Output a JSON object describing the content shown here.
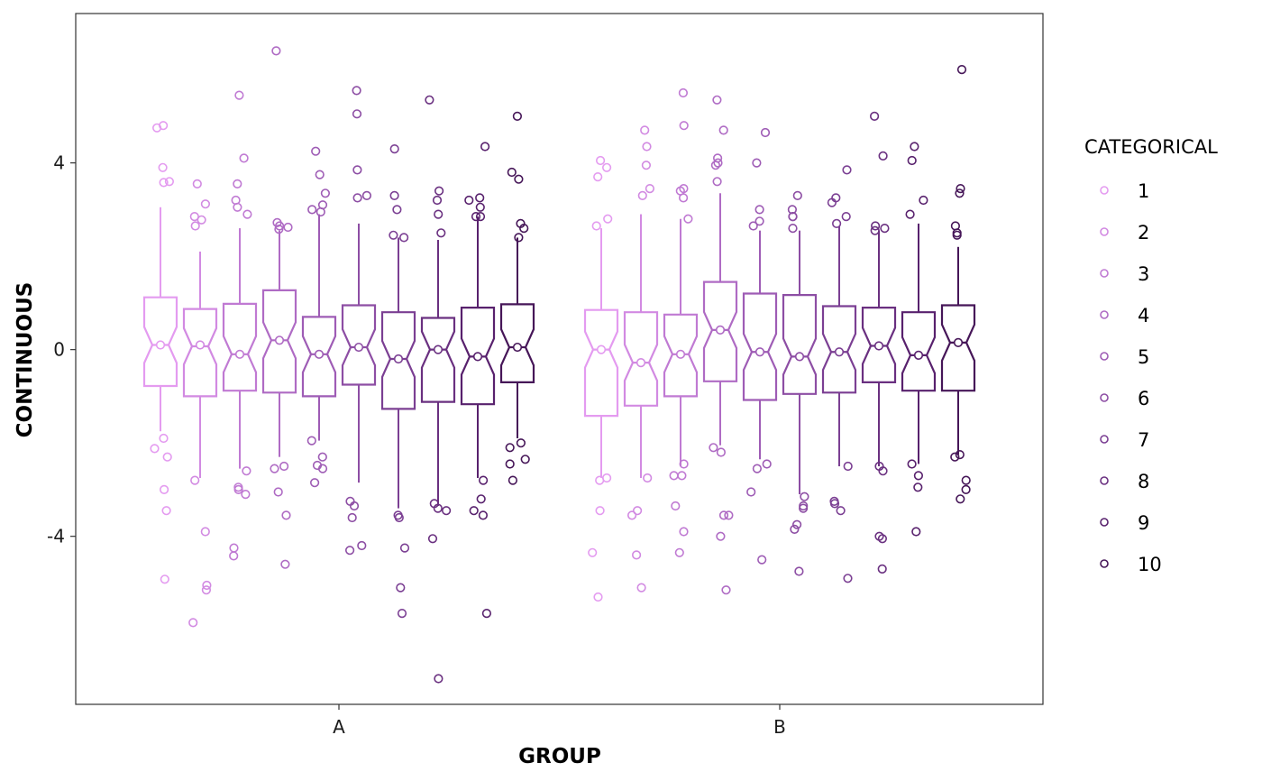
{
  "chart_data": {
    "type": "boxplot",
    "notched": true,
    "xlabel": "GROUP",
    "ylabel": "CONTINUOUS",
    "groups": [
      "A",
      "B"
    ],
    "ylim": [
      -7.6,
      7.2
    ],
    "yticks": [
      -4,
      0,
      4
    ],
    "ytick_labels": [
      "-4",
      "0",
      "4"
    ],
    "legend": {
      "title": "CATEGORICAL",
      "position": "right",
      "labels": [
        "1",
        "2",
        "3",
        "4",
        "5",
        "6",
        "7",
        "8",
        "9",
        "10"
      ]
    },
    "colors": [
      "#e49bf0",
      "#d28ae2",
      "#c07ad3",
      "#af6bc4",
      "#9e5cb5",
      "#8d4ea4",
      "#7b3f93",
      "#6a3080",
      "#58216d",
      "#461658"
    ],
    "boxes": [
      {
        "group": "A",
        "category": "1",
        "q1": -0.78,
        "median": 0.1,
        "q3": 1.12,
        "mean": 0.1,
        "whisker_low": -1.75,
        "whisker_high": 3.05,
        "outliers": [
          4.8,
          4.75,
          3.9,
          3.6,
          3.58,
          -1.9,
          -2.12,
          -2.3,
          -3.0,
          -3.45,
          -4.92
        ]
      },
      {
        "group": "A",
        "category": "2",
        "q1": -1.0,
        "median": 0.07,
        "q3": 0.87,
        "mean": 0.1,
        "whisker_low": -2.75,
        "whisker_high": 2.1,
        "outliers": [
          3.55,
          3.12,
          2.85,
          2.78,
          2.65,
          -2.8,
          -3.9,
          -5.05,
          -5.15,
          -5.85
        ]
      },
      {
        "group": "A",
        "category": "3",
        "q1": -0.88,
        "median": -0.1,
        "q3": 0.98,
        "mean": -0.1,
        "whisker_low": -2.55,
        "whisker_high": 2.6,
        "outliers": [
          5.45,
          4.1,
          3.55,
          3.2,
          3.05,
          2.9,
          -2.6,
          -2.95,
          -3.0,
          -3.1,
          -4.25,
          -4.42
        ]
      },
      {
        "group": "A",
        "category": "4",
        "q1": -0.92,
        "median": 0.2,
        "q3": 1.27,
        "mean": 0.2,
        "whisker_low": -2.3,
        "whisker_high": 2.55,
        "outliers": [
          6.4,
          2.72,
          2.65,
          2.62,
          2.58,
          -2.5,
          -2.55,
          -3.05,
          -3.55,
          -4.6
        ]
      },
      {
        "group": "A",
        "category": "5",
        "q1": -1.0,
        "median": -0.1,
        "q3": 0.7,
        "mean": -0.1,
        "whisker_low": -1.95,
        "whisker_high": 2.9,
        "outliers": [
          4.25,
          3.75,
          3.35,
          3.1,
          3.0,
          2.95,
          -1.95,
          -2.3,
          -2.48,
          -2.55,
          -2.85
        ]
      },
      {
        "group": "A",
        "category": "6",
        "q1": -0.75,
        "median": 0.05,
        "q3": 0.95,
        "mean": 0.05,
        "whisker_low": -2.85,
        "whisker_high": 2.7,
        "outliers": [
          5.55,
          5.05,
          3.85,
          3.3,
          3.25,
          -3.25,
          -3.35,
          -3.6,
          -4.2,
          -4.3
        ]
      },
      {
        "group": "A",
        "category": "7",
        "q1": -1.27,
        "median": -0.2,
        "q3": 0.8,
        "mean": -0.2,
        "whisker_low": -3.4,
        "whisker_high": 2.4,
        "outliers": [
          4.3,
          3.3,
          3.0,
          2.45,
          2.4,
          -3.55,
          -3.6,
          -4.25,
          -5.1,
          -5.65
        ]
      },
      {
        "group": "A",
        "category": "8",
        "q1": -1.12,
        "median": 0.0,
        "q3": 0.68,
        "mean": 0.0,
        "whisker_low": -3.35,
        "whisker_high": 2.35,
        "outliers": [
          5.35,
          3.4,
          3.2,
          2.9,
          2.5,
          -3.3,
          -3.4,
          -3.45,
          -4.05,
          -7.05
        ]
      },
      {
        "group": "A",
        "category": "9",
        "q1": -1.17,
        "median": -0.15,
        "q3": 0.9,
        "mean": -0.15,
        "whisker_low": -2.75,
        "whisker_high": 2.85,
        "outliers": [
          4.35,
          3.25,
          3.2,
          3.05,
          2.85,
          2.85,
          -2.8,
          -3.2,
          -3.45,
          -3.55,
          -5.65
        ]
      },
      {
        "group": "A",
        "category": "10",
        "q1": -0.7,
        "median": 0.05,
        "q3": 0.97,
        "mean": 0.05,
        "whisker_low": -1.9,
        "whisker_high": 2.4,
        "outliers": [
          5.0,
          3.8,
          3.65,
          2.7,
          2.6,
          2.4,
          -2.0,
          -2.1,
          -2.35,
          -2.45,
          -2.8
        ]
      },
      {
        "group": "B",
        "category": "1",
        "q1": -1.42,
        "median": 0.0,
        "q3": 0.85,
        "mean": 0.0,
        "whisker_low": -2.75,
        "whisker_high": 2.6,
        "outliers": [
          4.05,
          3.9,
          3.7,
          2.8,
          2.65,
          -2.75,
          -2.8,
          -3.45,
          -4.35,
          -5.3
        ]
      },
      {
        "group": "B",
        "category": "2",
        "q1": -1.2,
        "median": -0.28,
        "q3": 0.8,
        "mean": -0.28,
        "whisker_low": -2.75,
        "whisker_high": 2.9,
        "outliers": [
          4.7,
          4.35,
          3.95,
          3.45,
          3.3,
          -2.75,
          -3.45,
          -3.55,
          -4.4,
          -5.1
        ]
      },
      {
        "group": "B",
        "category": "3",
        "q1": -1.0,
        "median": -0.1,
        "q3": 0.75,
        "mean": -0.1,
        "whisker_low": -2.5,
        "whisker_high": 2.8,
        "outliers": [
          5.5,
          4.8,
          3.45,
          3.4,
          3.25,
          2.8,
          -2.45,
          -2.7,
          -2.7,
          -3.35,
          -3.9,
          -4.35
        ]
      },
      {
        "group": "B",
        "category": "4",
        "q1": -0.68,
        "median": 0.42,
        "q3": 1.45,
        "mean": 0.42,
        "whisker_low": -2.05,
        "whisker_high": 3.35,
        "outliers": [
          5.35,
          4.7,
          4.1,
          4.0,
          3.95,
          3.6,
          -2.1,
          -2.2,
          -3.55,
          -3.55,
          -4.0,
          -5.15
        ]
      },
      {
        "group": "B",
        "category": "5",
        "q1": -1.08,
        "median": -0.05,
        "q3": 1.2,
        "mean": -0.05,
        "whisker_low": -2.35,
        "whisker_high": 2.55,
        "outliers": [
          4.65,
          4.0,
          3.0,
          2.75,
          2.65,
          -2.45,
          -2.55,
          -3.05,
          -4.5
        ]
      },
      {
        "group": "B",
        "category": "6",
        "q1": -0.95,
        "median": -0.15,
        "q3": 1.17,
        "mean": -0.15,
        "whisker_low": -3.1,
        "whisker_high": 2.55,
        "outliers": [
          3.3,
          3.0,
          2.85,
          2.85,
          2.6,
          -3.15,
          -3.35,
          -3.4,
          -3.75,
          -3.85,
          -4.75
        ]
      },
      {
        "group": "B",
        "category": "7",
        "q1": -0.92,
        "median": -0.05,
        "q3": 0.93,
        "mean": -0.05,
        "whisker_low": -2.5,
        "whisker_high": 2.65,
        "outliers": [
          3.85,
          3.25,
          3.15,
          2.85,
          2.7,
          -2.5,
          -3.25,
          -3.3,
          -3.45,
          -4.9
        ]
      },
      {
        "group": "B",
        "category": "8",
        "q1": -0.7,
        "median": 0.08,
        "q3": 0.9,
        "mean": 0.08,
        "whisker_low": -2.5,
        "whisker_high": 2.55,
        "outliers": [
          5.0,
          4.15,
          2.65,
          2.6,
          2.55,
          -2.5,
          -2.6,
          -4.0,
          -4.05,
          -4.7
        ]
      },
      {
        "group": "B",
        "category": "9",
        "q1": -0.88,
        "median": -0.12,
        "q3": 0.8,
        "mean": -0.12,
        "whisker_low": -2.45,
        "whisker_high": 2.7,
        "outliers": [
          4.35,
          4.05,
          3.2,
          2.9,
          -2.45,
          -2.7,
          -2.95,
          -3.9
        ]
      },
      {
        "group": "B",
        "category": "10",
        "q1": -0.88,
        "median": 0.15,
        "q3": 0.95,
        "mean": 0.15,
        "whisker_low": -2.25,
        "whisker_high": 2.2,
        "outliers": [
          6.0,
          3.45,
          3.35,
          2.65,
          2.5,
          2.45,
          -2.25,
          -2.3,
          -2.8,
          -3.0,
          -3.2
        ]
      }
    ]
  }
}
